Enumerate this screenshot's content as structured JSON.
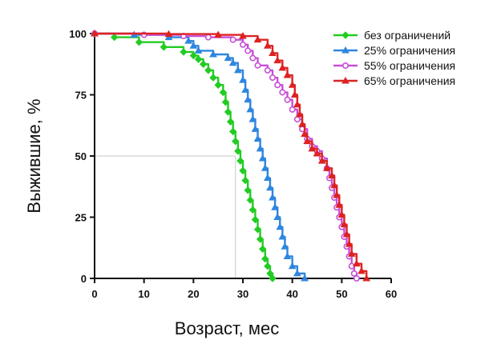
{
  "chart_data": {
    "type": "line",
    "title": "",
    "xlabel": "Возраст, мес",
    "ylabel": "Выжившие, %",
    "xlim": [
      0,
      60
    ],
    "ylim": [
      0,
      100
    ],
    "xticks": [
      0,
      10,
      20,
      30,
      40,
      50,
      60
    ],
    "yticks": [
      0,
      25,
      50,
      75,
      100
    ],
    "grid": false,
    "legend_position": "top-right",
    "reference_lines": {
      "y": 50,
      "x": 28.5,
      "color": "#c8c8c8"
    },
    "series": [
      {
        "name": "без ограничений",
        "color": "#22cc22",
        "marker": "diamond",
        "points": [
          [
            0,
            100
          ],
          [
            4,
            98.5
          ],
          [
            9,
            96.5
          ],
          [
            14,
            94.5
          ],
          [
            18,
            92.5
          ],
          [
            20,
            91
          ],
          [
            21,
            89.5
          ],
          [
            22,
            87.5
          ],
          [
            23,
            85
          ],
          [
            24,
            82
          ],
          [
            25,
            79
          ],
          [
            26,
            76
          ],
          [
            26.5,
            72
          ],
          [
            27,
            68
          ],
          [
            27.5,
            64
          ],
          [
            28,
            60
          ],
          [
            28.5,
            56
          ],
          [
            29,
            52
          ],
          [
            29.5,
            48
          ],
          [
            30,
            44
          ],
          [
            30.5,
            40
          ],
          [
            31,
            36
          ],
          [
            31.5,
            32
          ],
          [
            32,
            28
          ],
          [
            32.5,
            24
          ],
          [
            33,
            20
          ],
          [
            33.5,
            16
          ],
          [
            34,
            12
          ],
          [
            34.5,
            8
          ],
          [
            35,
            5
          ],
          [
            35.5,
            2
          ],
          [
            36,
            0
          ]
        ]
      },
      {
        "name": "25% ограничения",
        "color": "#2e86de",
        "marker": "triangle",
        "points": [
          [
            0,
            100
          ],
          [
            8,
            99.5
          ],
          [
            15,
            98.5
          ],
          [
            19,
            97
          ],
          [
            20,
            95
          ],
          [
            21,
            93
          ],
          [
            24,
            91.5
          ],
          [
            27,
            90
          ],
          [
            28,
            88
          ],
          [
            29,
            85
          ],
          [
            30,
            81
          ],
          [
            30.5,
            77
          ],
          [
            31,
            73
          ],
          [
            31.5,
            69
          ],
          [
            32,
            65
          ],
          [
            32.5,
            61
          ],
          [
            33,
            57
          ],
          [
            33.5,
            53
          ],
          [
            34,
            49
          ],
          [
            34.5,
            45
          ],
          [
            35,
            41
          ],
          [
            35.5,
            37
          ],
          [
            36,
            33
          ],
          [
            36.5,
            29
          ],
          [
            37,
            25
          ],
          [
            37.5,
            21
          ],
          [
            38,
            17
          ],
          [
            38.5,
            13
          ],
          [
            39,
            9
          ],
          [
            40,
            5
          ],
          [
            41,
            2
          ],
          [
            42.5,
            0
          ]
        ]
      },
      {
        "name": "55% ограничения",
        "color": "#c84fd8",
        "marker": "circle",
        "points": [
          [
            0,
            100
          ],
          [
            10,
            99.5
          ],
          [
            18,
            99
          ],
          [
            23,
            98.5
          ],
          [
            28,
            97.5
          ],
          [
            30,
            95.5
          ],
          [
            31,
            93
          ],
          [
            32,
            90
          ],
          [
            33,
            87
          ],
          [
            35,
            85
          ],
          [
            36,
            82
          ],
          [
            37,
            79
          ],
          [
            38,
            76
          ],
          [
            39,
            73
          ],
          [
            40,
            69
          ],
          [
            41,
            65
          ],
          [
            42,
            61
          ],
          [
            43,
            57
          ],
          [
            44,
            54
          ],
          [
            45,
            52
          ],
          [
            46,
            49
          ],
          [
            47,
            45
          ],
          [
            47.5,
            41
          ],
          [
            48,
            37
          ],
          [
            48.5,
            33
          ],
          [
            49,
            29
          ],
          [
            49.5,
            25
          ],
          [
            50,
            21
          ],
          [
            50.5,
            17
          ],
          [
            51,
            13
          ],
          [
            51.5,
            9
          ],
          [
            52,
            5
          ],
          [
            52.5,
            2
          ],
          [
            53,
            0
          ]
        ]
      },
      {
        "name": "65% ограничения",
        "color": "#dd2222",
        "marker": "triangle",
        "points": [
          [
            0,
            100
          ],
          [
            15,
            99.8
          ],
          [
            25,
            99.5
          ],
          [
            30,
            99
          ],
          [
            33,
            97.5
          ],
          [
            35,
            95
          ],
          [
            36,
            92
          ],
          [
            37,
            89
          ],
          [
            38,
            86
          ],
          [
            39,
            83
          ],
          [
            40,
            79
          ],
          [
            40.5,
            75
          ],
          [
            41,
            71
          ],
          [
            41.5,
            67
          ],
          [
            42,
            63
          ],
          [
            42.5,
            59
          ],
          [
            43,
            56
          ],
          [
            44,
            53
          ],
          [
            45,
            51
          ],
          [
            46,
            48
          ],
          [
            47,
            45
          ],
          [
            48,
            42
          ],
          [
            48.5,
            38
          ],
          [
            49,
            34
          ],
          [
            49.5,
            30
          ],
          [
            50,
            26
          ],
          [
            50.5,
            22
          ],
          [
            51,
            18
          ],
          [
            51.5,
            14
          ],
          [
            52,
            10
          ],
          [
            53,
            6
          ],
          [
            54,
            3
          ],
          [
            55,
            0
          ]
        ]
      }
    ]
  }
}
